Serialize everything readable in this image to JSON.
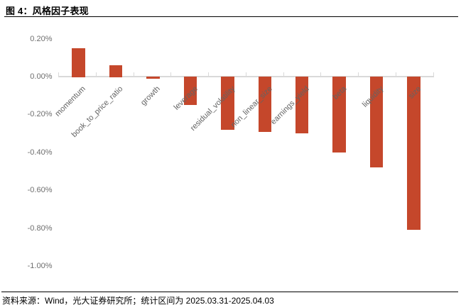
{
  "figure": {
    "title": "图 4：风格因子表现",
    "source_note": "资料来源：Wind，光大证券研究所；统计区间为 2025.03.31-2025.04.03"
  },
  "chart_data": {
    "type": "bar",
    "title": "风格因子表现",
    "xlabel": "",
    "ylabel": "",
    "unit": "%",
    "categories": [
      "momentum",
      "book_to_price_ratio",
      "growth",
      "leverage",
      "residual_volatility",
      "non_linear_size",
      "earnings_yield",
      "beta",
      "liquidity",
      "size"
    ],
    "values": [
      0.15,
      0.06,
      -0.01,
      -0.15,
      -0.28,
      -0.29,
      -0.3,
      -0.4,
      -0.48,
      -0.81
    ],
    "y_ticks": [
      {
        "label": "0.20%",
        "value": 0.2
      },
      {
        "label": "0.00%",
        "value": 0.0
      },
      {
        "label": "-0.20%",
        "value": -0.2
      },
      {
        "label": "-0.40%",
        "value": -0.4
      },
      {
        "label": "-0.60%",
        "value": -0.6
      },
      {
        "label": "-0.80%",
        "value": -0.8
      },
      {
        "label": "-1.00%",
        "value": -1.0
      }
    ],
    "ylim": [
      -1.05,
      0.25
    ],
    "grid": false,
    "legend": null,
    "colors": {
      "bar": "#C5472B",
      "axis": "#D9D9D9",
      "y_tick_label": "#6E6E6E",
      "category_label": "#636363"
    }
  }
}
